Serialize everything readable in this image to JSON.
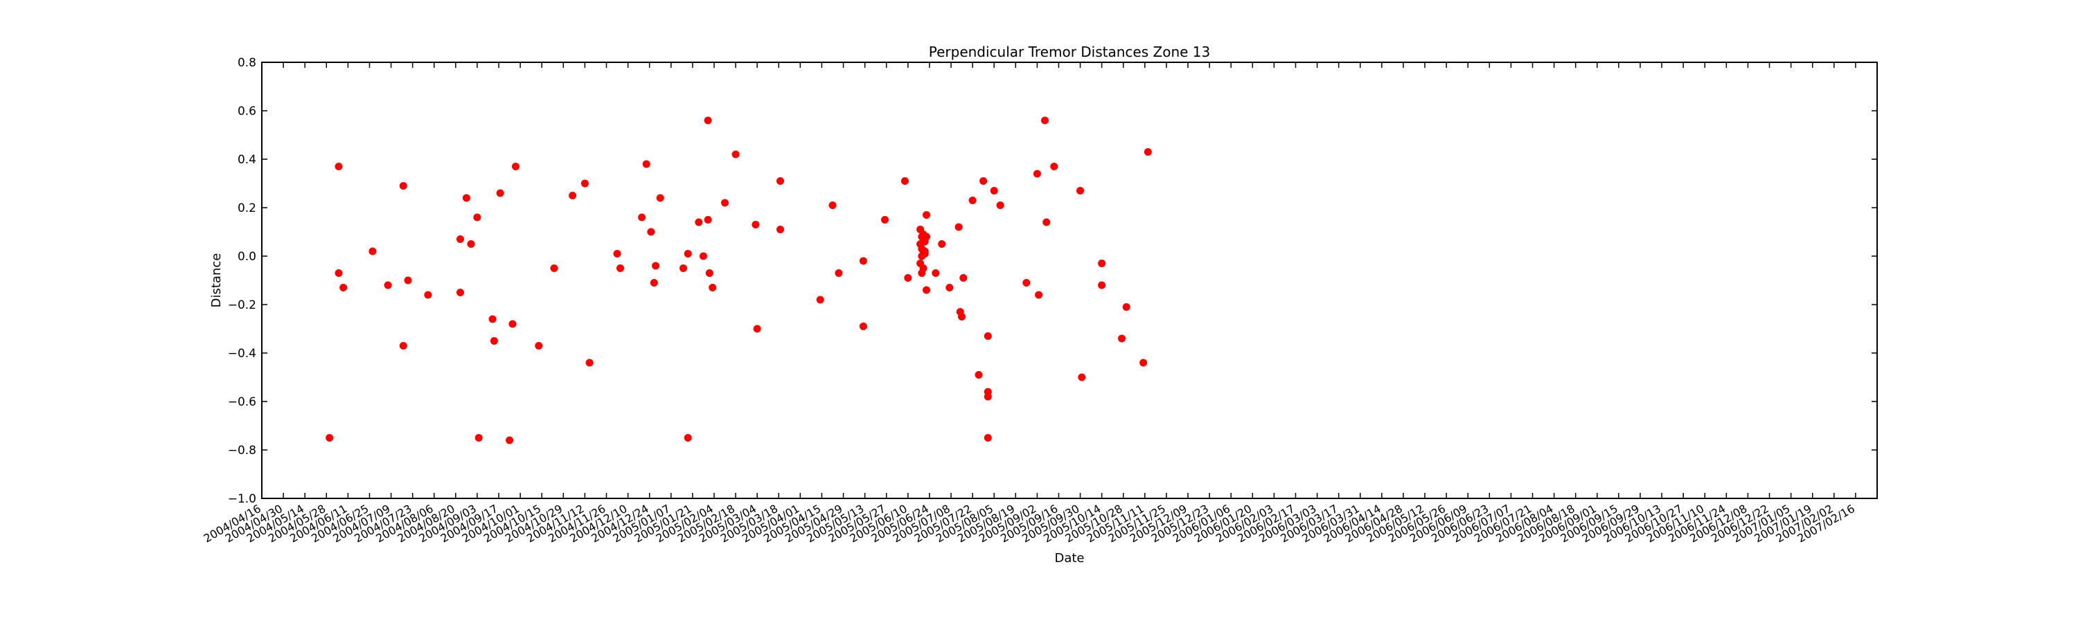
{
  "chart_data": {
    "type": "scatter",
    "title": "Perpendicular Tremor Distances Zone 13",
    "xlabel": "Date",
    "ylabel": "Distance",
    "xlim": [
      "2004-04-16",
      "2007-03-02"
    ],
    "ylim": [
      -1.0,
      0.8
    ],
    "yticks": [
      -1.0,
      -0.8,
      -0.6,
      -0.4,
      -0.2,
      0.0,
      0.2,
      0.4,
      0.6,
      0.8
    ],
    "ytick_labels": [
      "−1.0",
      "−0.8",
      "−0.6",
      "−0.4",
      "−0.2",
      "0.0",
      "0.2",
      "0.4",
      "0.6",
      "0.8"
    ],
    "xtick_labels": [
      "2004/04/16",
      "2004/04/30",
      "2004/05/14",
      "2004/05/28",
      "2004/06/11",
      "2004/06/25",
      "2004/07/09",
      "2004/07/23",
      "2004/08/06",
      "2004/08/20",
      "2004/09/03",
      "2004/09/17",
      "2004/10/01",
      "2004/10/15",
      "2004/10/29",
      "2004/11/12",
      "2004/11/26",
      "2004/12/10",
      "2004/12/24",
      "2005/01/07",
      "2005/01/21",
      "2005/02/04",
      "2005/02/18",
      "2005/03/04",
      "2005/03/18",
      "2005/04/01",
      "2005/04/15",
      "2005/04/29",
      "2005/05/13",
      "2005/05/27",
      "2005/06/10",
      "2005/06/24",
      "2005/07/08",
      "2005/07/22",
      "2005/08/05",
      "2005/08/19",
      "2005/09/02",
      "2005/09/16",
      "2005/09/30",
      "2005/10/14",
      "2005/10/28",
      "2005/11/11",
      "2005/11/25",
      "2005/12/09",
      "2005/12/23",
      "2006/01/06",
      "2006/01/20",
      "2006/02/03",
      "2006/02/17",
      "2006/03/03",
      "2006/03/17",
      "2006/03/31",
      "2006/04/14",
      "2006/04/28",
      "2006/05/12",
      "2006/05/26",
      "2006/06/09",
      "2006/06/23",
      "2006/07/07",
      "2006/07/21",
      "2006/08/04",
      "2006/08/18",
      "2006/09/01",
      "2006/09/15",
      "2006/09/29",
      "2006/10/13",
      "2006/10/27",
      "2006/11/10",
      "2006/11/24",
      "2006/12/08",
      "2006/12/22",
      "2007/01/05",
      "2007/01/19",
      "2007/02/02",
      "2007/02/16"
    ],
    "grid": false,
    "marker_color": "#ff0000",
    "points": [
      {
        "x": "2004-05-30",
        "y": -0.75
      },
      {
        "x": "2004-06-05",
        "y": 0.37
      },
      {
        "x": "2004-06-05",
        "y": -0.07
      },
      {
        "x": "2004-06-08",
        "y": -0.13
      },
      {
        "x": "2004-06-27",
        "y": 0.02
      },
      {
        "x": "2004-07-07",
        "y": -0.12
      },
      {
        "x": "2004-07-17",
        "y": 0.29
      },
      {
        "x": "2004-07-17",
        "y": -0.37
      },
      {
        "x": "2004-07-20",
        "y": -0.1
      },
      {
        "x": "2004-08-02",
        "y": -0.16
      },
      {
        "x": "2004-08-23",
        "y": 0.07
      },
      {
        "x": "2004-08-23",
        "y": -0.15
      },
      {
        "x": "2004-08-27",
        "y": 0.24
      },
      {
        "x": "2004-08-30",
        "y": 0.05
      },
      {
        "x": "2004-09-03",
        "y": 0.16
      },
      {
        "x": "2004-09-04",
        "y": -0.75
      },
      {
        "x": "2004-09-13",
        "y": -0.26
      },
      {
        "x": "2004-09-14",
        "y": -0.35
      },
      {
        "x": "2004-09-18",
        "y": 0.26
      },
      {
        "x": "2004-09-24",
        "y": -0.76
      },
      {
        "x": "2004-09-26",
        "y": -0.28
      },
      {
        "x": "2004-09-28",
        "y": 0.37
      },
      {
        "x": "2004-10-13",
        "y": -0.37
      },
      {
        "x": "2004-10-23",
        "y": -0.05
      },
      {
        "x": "2004-11-04",
        "y": 0.25
      },
      {
        "x": "2004-11-12",
        "y": 0.3
      },
      {
        "x": "2004-11-15",
        "y": -0.44
      },
      {
        "x": "2004-12-03",
        "y": 0.01
      },
      {
        "x": "2004-12-05",
        "y": -0.05
      },
      {
        "x": "2004-12-19",
        "y": 0.16
      },
      {
        "x": "2004-12-22",
        "y": 0.38
      },
      {
        "x": "2004-12-25",
        "y": 0.1
      },
      {
        "x": "2004-12-27",
        "y": -0.11
      },
      {
        "x": "2004-12-28",
        "y": -0.04
      },
      {
        "x": "2004-12-31",
        "y": 0.24
      },
      {
        "x": "2005-01-15",
        "y": -0.05
      },
      {
        "x": "2005-01-18",
        "y": -0.75
      },
      {
        "x": "2005-01-18",
        "y": 0.01
      },
      {
        "x": "2005-01-25",
        "y": 0.14
      },
      {
        "x": "2005-01-28",
        "y": 0.0
      },
      {
        "x": "2005-01-31",
        "y": 0.56
      },
      {
        "x": "2005-01-31",
        "y": 0.15
      },
      {
        "x": "2005-02-01",
        "y": -0.07
      },
      {
        "x": "2005-02-03",
        "y": -0.13
      },
      {
        "x": "2005-02-11",
        "y": 0.22
      },
      {
        "x": "2005-02-18",
        "y": 0.42
      },
      {
        "x": "2005-03-03",
        "y": 0.13
      },
      {
        "x": "2005-03-04",
        "y": -0.3
      },
      {
        "x": "2005-03-19",
        "y": 0.31
      },
      {
        "x": "2005-03-19",
        "y": 0.11
      },
      {
        "x": "2005-04-14",
        "y": -0.18
      },
      {
        "x": "2005-04-22",
        "y": 0.21
      },
      {
        "x": "2005-04-26",
        "y": -0.07
      },
      {
        "x": "2005-05-12",
        "y": -0.02
      },
      {
        "x": "2005-05-12",
        "y": -0.29
      },
      {
        "x": "2005-05-26",
        "y": 0.15
      },
      {
        "x": "2005-06-08",
        "y": 0.31
      },
      {
        "x": "2005-06-10",
        "y": -0.09
      },
      {
        "x": "2005-06-18",
        "y": 0.11
      },
      {
        "x": "2005-06-19",
        "y": 0.08
      },
      {
        "x": "2005-06-18",
        "y": 0.05
      },
      {
        "x": "2005-06-19",
        "y": 0.03
      },
      {
        "x": "2005-06-20",
        "y": 0.02
      },
      {
        "x": "2005-06-19",
        "y": 0.0
      },
      {
        "x": "2005-06-18",
        "y": -0.03
      },
      {
        "x": "2005-06-19",
        "y": -0.07
      },
      {
        "x": "2005-06-20",
        "y": 0.09
      },
      {
        "x": "2005-06-21",
        "y": 0.06
      },
      {
        "x": "2005-06-21",
        "y": 0.02
      },
      {
        "x": "2005-06-20",
        "y": -0.05
      },
      {
        "x": "2005-06-21",
        "y": 0.01
      },
      {
        "x": "2005-06-22",
        "y": 0.17
      },
      {
        "x": "2005-06-22",
        "y": 0.08
      },
      {
        "x": "2005-06-22",
        "y": -0.14
      },
      {
        "x": "2005-06-28",
        "y": -0.07
      },
      {
        "x": "2005-07-02",
        "y": 0.05
      },
      {
        "x": "2005-07-07",
        "y": -0.13
      },
      {
        "x": "2005-07-13",
        "y": 0.12
      },
      {
        "x": "2005-07-14",
        "y": -0.23
      },
      {
        "x": "2005-07-15",
        "y": -0.25
      },
      {
        "x": "2005-07-16",
        "y": -0.09
      },
      {
        "x": "2005-07-22",
        "y": 0.23
      },
      {
        "x": "2005-07-26",
        "y": -0.49
      },
      {
        "x": "2005-07-29",
        "y": 0.31
      },
      {
        "x": "2005-08-01",
        "y": -0.33
      },
      {
        "x": "2005-08-01",
        "y": -0.56
      },
      {
        "x": "2005-08-01",
        "y": -0.58
      },
      {
        "x": "2005-08-01",
        "y": -0.75
      },
      {
        "x": "2005-08-05",
        "y": 0.27
      },
      {
        "x": "2005-08-09",
        "y": 0.21
      },
      {
        "x": "2005-08-26",
        "y": -0.11
      },
      {
        "x": "2005-09-02",
        "y": 0.34
      },
      {
        "x": "2005-09-03",
        "y": -0.16
      },
      {
        "x": "2005-09-07",
        "y": 0.56
      },
      {
        "x": "2005-09-08",
        "y": 0.14
      },
      {
        "x": "2005-09-13",
        "y": 0.37
      },
      {
        "x": "2005-09-30",
        "y": 0.27
      },
      {
        "x": "2005-10-01",
        "y": -0.5
      },
      {
        "x": "2005-10-14",
        "y": -0.03
      },
      {
        "x": "2005-10-14",
        "y": -0.12
      },
      {
        "x": "2005-10-27",
        "y": -0.34
      },
      {
        "x": "2005-10-30",
        "y": -0.21
      },
      {
        "x": "2005-11-10",
        "y": -0.44
      },
      {
        "x": "2005-11-13",
        "y": 0.43
      }
    ]
  }
}
